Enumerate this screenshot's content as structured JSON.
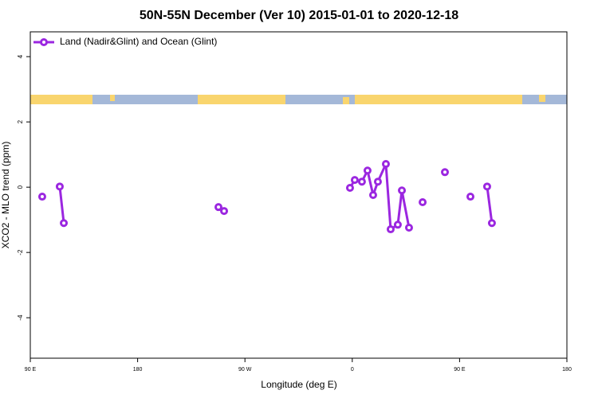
{
  "chart_data": {
    "type": "line",
    "title": "50N-55N December (Ver 10)   2015-01-01 to 2020-12-18",
    "x_label": "Longitude (deg E)",
    "y_label": "XCO2 - MLO trend (ppm)",
    "xlim": [
      90,
      540
    ],
    "ylim": [
      -5.24,
      4.76
    ],
    "xticks": [
      {
        "value": 90,
        "label": "90 E"
      },
      180,
      {
        "value": 270,
        "label": "90 W"
      },
      {
        "value": 360,
        "label": "0"
      },
      {
        "value": 450,
        "label": "90 E"
      },
      {
        "value": 540,
        "label": "180"
      }
    ],
    "yticks": [
      -4,
      -2,
      0,
      2,
      4
    ],
    "legend": "top-left",
    "series": [
      {
        "name": "Land (Nadir&Glint) and Ocean (Glint)",
        "color": "#9b27e0",
        "x": [
          100.0,
          null,
          114.7,
          118.1,
          null,
          247.8,
          252.5,
          null,
          358.1,
          362.1,
          368.1,
          372.8,
          377.5,
          381.5,
          388.2,
          392.2,
          398.2,
          401.6,
          407.6,
          null,
          419.0,
          null,
          437.7,
          null,
          459.1,
          null,
          473.1,
          477.1
        ],
        "values": [
          -0.29,
          null,
          0.02,
          -1.1,
          null,
          -0.61,
          -0.73,
          null,
          -0.02,
          0.22,
          0.17,
          0.51,
          -0.24,
          0.17,
          0.71,
          -1.29,
          -1.15,
          -0.1,
          -1.24,
          null,
          -0.46,
          null,
          0.46,
          null,
          -0.29,
          null,
          0.02,
          -1.1
        ]
      }
    ]
  }
}
